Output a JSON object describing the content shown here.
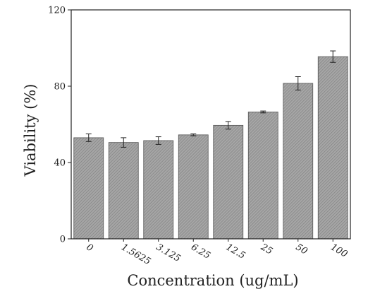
{
  "chart_data": {
    "type": "bar",
    "title": "",
    "xlabel": "Concentration (ug/mL)",
    "ylabel": "Viability (%)",
    "categories": [
      "0",
      "1.5625",
      "3.125",
      "6.25",
      "12.5",
      "25",
      "50",
      "100"
    ],
    "values": [
      53,
      50.5,
      51.5,
      54.5,
      59.5,
      66.5,
      81.5,
      95.5
    ],
    "errors": [
      2,
      2.5,
      2,
      0.5,
      2,
      0.5,
      3.5,
      3
    ],
    "ylim": [
      0,
      120
    ],
    "yticks": [
      0,
      40,
      80,
      120
    ],
    "ytick_labels": [
      "0",
      "40",
      "80",
      "120"
    ],
    "grid": false,
    "colors": {
      "bar_fill": "#a6a6a6",
      "bar_hatch": "#7a7a7a",
      "bar_edge": "#555555",
      "axis": "#222222"
    }
  }
}
